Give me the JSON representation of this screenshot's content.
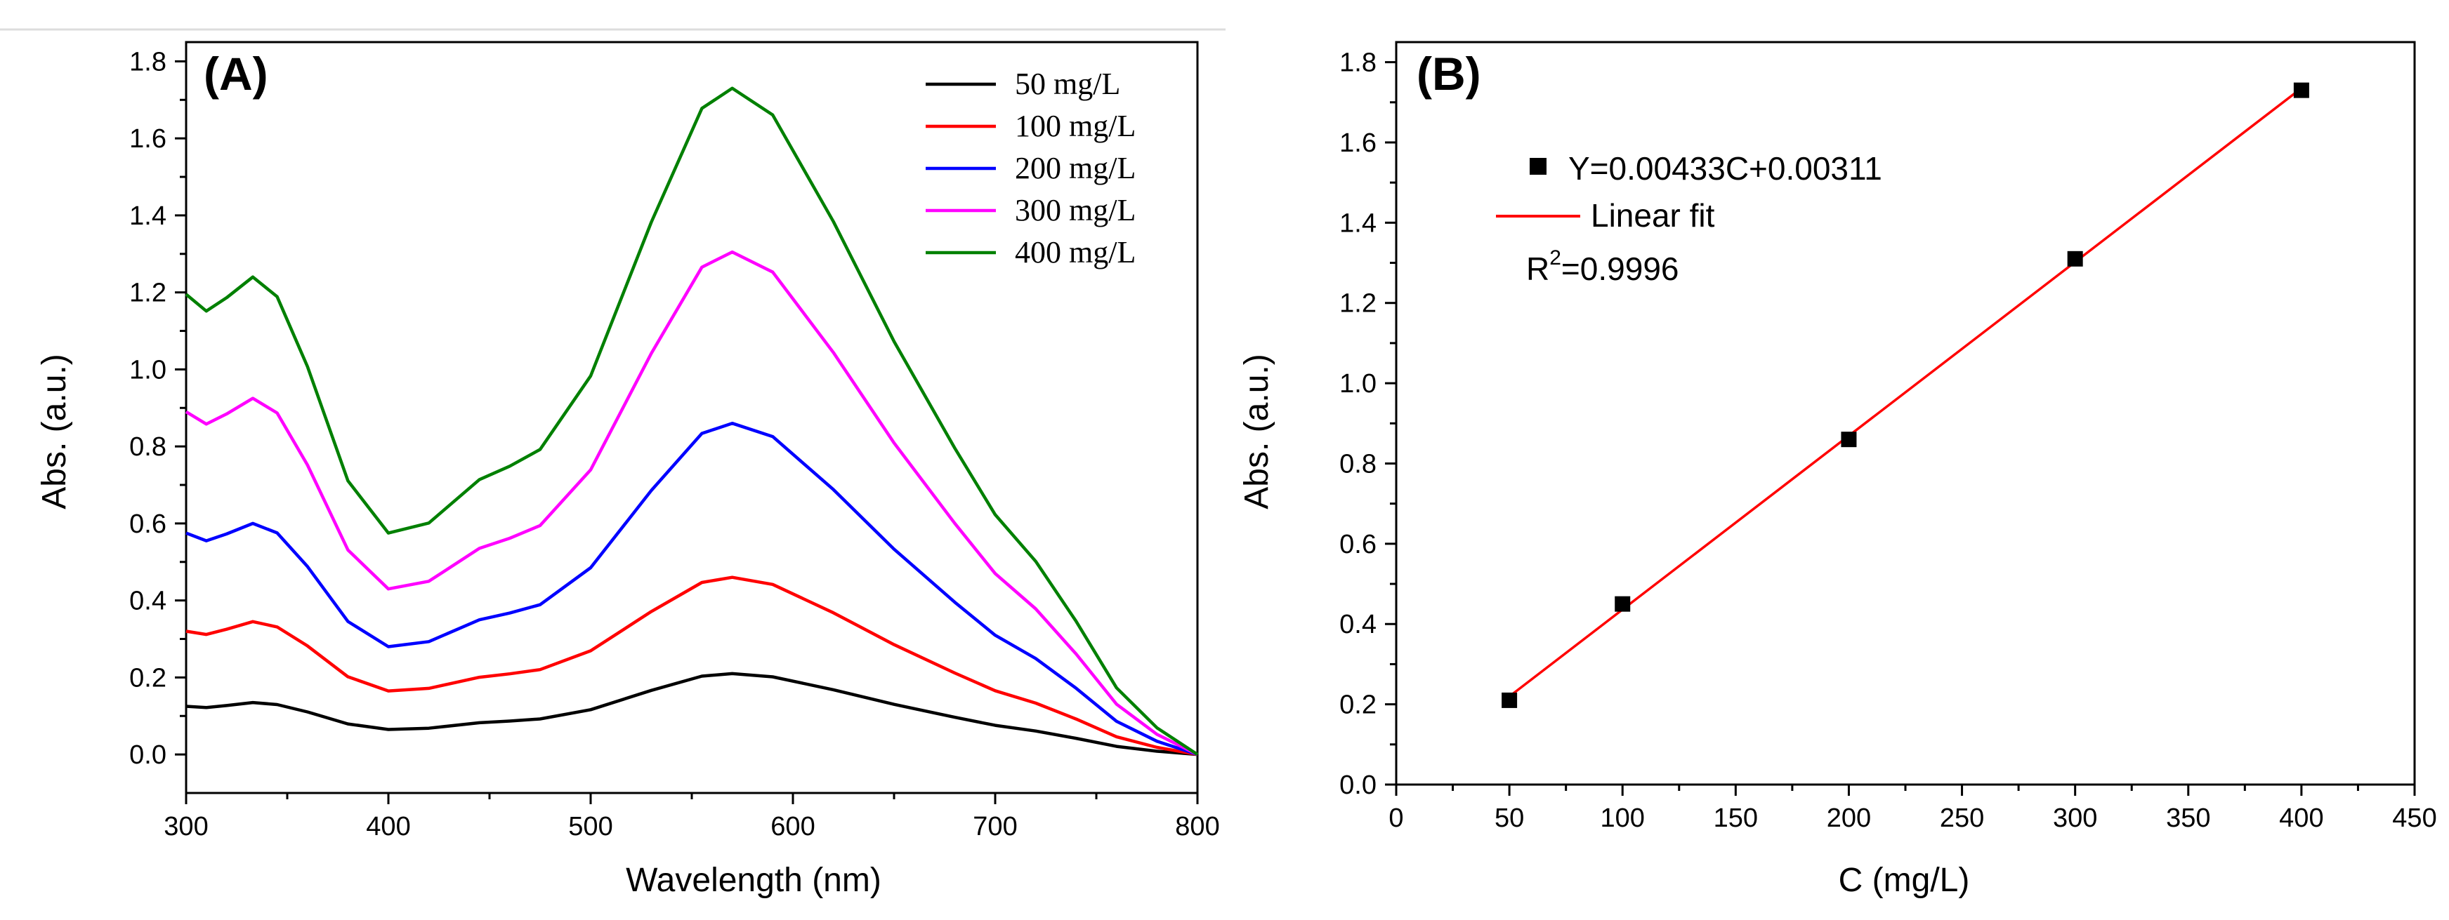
{
  "chart_data": [
    {
      "panel_label": "(A)",
      "type": "line",
      "xlabel": "Wavelength (nm)",
      "ylabel": "Abs. (a.u.)",
      "xlim": [
        300,
        800
      ],
      "ylim": [
        -0.1,
        1.85
      ],
      "xticks": [
        300,
        400,
        500,
        600,
        700,
        800
      ],
      "yticks": [
        0.0,
        0.2,
        0.4,
        0.6,
        0.8,
        1.0,
        1.2,
        1.4,
        1.6,
        1.8
      ],
      "legend_position": "top-right",
      "shape": {
        "x": [
          300,
          310,
          320,
          333,
          345,
          360,
          380,
          400,
          420,
          445,
          460,
          475,
          500,
          530,
          555,
          570,
          590,
          620,
          650,
          680,
          700,
          720,
          740,
          760,
          780,
          800
        ],
        "y": [
          0.93,
          0.9,
          0.94,
          1.0,
          0.97,
          0.8,
          0.53,
          0.335,
          0.35,
          0.415,
          0.435,
          0.46,
          0.57,
          0.8,
          0.97,
          1.0,
          0.96,
          0.8,
          0.62,
          0.46,
          0.36,
          0.29,
          0.2,
          0.1,
          0.04,
          0.0
        ]
      },
      "series": [
        {
          "name": "50 mg/L",
          "color": "#000000",
          "peak_500_650": 0.21,
          "peak_330": 0.135,
          "min_400": 0.065,
          "start_300": 0.125
        },
        {
          "name": "100 mg/L",
          "color": "#ff0000",
          "peak_500_650": 0.46,
          "peak_330": 0.345,
          "min_400": 0.165,
          "start_300": 0.32
        },
        {
          "name": "200 mg/L",
          "color": "#0000ff",
          "peak_500_650": 0.86,
          "peak_330": 0.6,
          "min_400": 0.28,
          "start_300": 0.575
        },
        {
          "name": "300 mg/L",
          "color": "#ff00ff",
          "peak_500_650": 1.305,
          "peak_330": 0.925,
          "min_400": 0.43,
          "start_300": 0.89
        },
        {
          "name": "400 mg/L",
          "color": "#008000",
          "peak_500_650": 1.73,
          "peak_330": 1.24,
          "min_400": 0.575,
          "start_300": 1.195
        }
      ]
    },
    {
      "panel_label": "(B)",
      "type": "scatter",
      "xlabel": "C (mg/L)",
      "ylabel": "Abs. (a.u.)",
      "xlim": [
        0,
        450
      ],
      "ylim": [
        0.0,
        1.85
      ],
      "xticks": [
        0,
        50,
        100,
        150,
        200,
        250,
        300,
        350,
        400,
        450
      ],
      "yticks": [
        0.0,
        0.2,
        0.4,
        0.6,
        0.8,
        1.0,
        1.2,
        1.4,
        1.6,
        1.8
      ],
      "points": {
        "x": [
          50,
          100,
          200,
          300,
          400
        ],
        "y": [
          0.21,
          0.45,
          0.86,
          1.31,
          1.73
        ]
      },
      "fit": {
        "slope": 0.00433,
        "intercept": 0.00311,
        "x_range": [
          50,
          400
        ],
        "color": "#ff0000"
      },
      "legend": {
        "points_label": "Y=0.00433C+0.00311",
        "fit_label": "Linear fit",
        "r2_prefix": "R",
        "r2_sup": "2",
        "r2_value": "=0.9996"
      },
      "legend_position": "top-left"
    }
  ]
}
